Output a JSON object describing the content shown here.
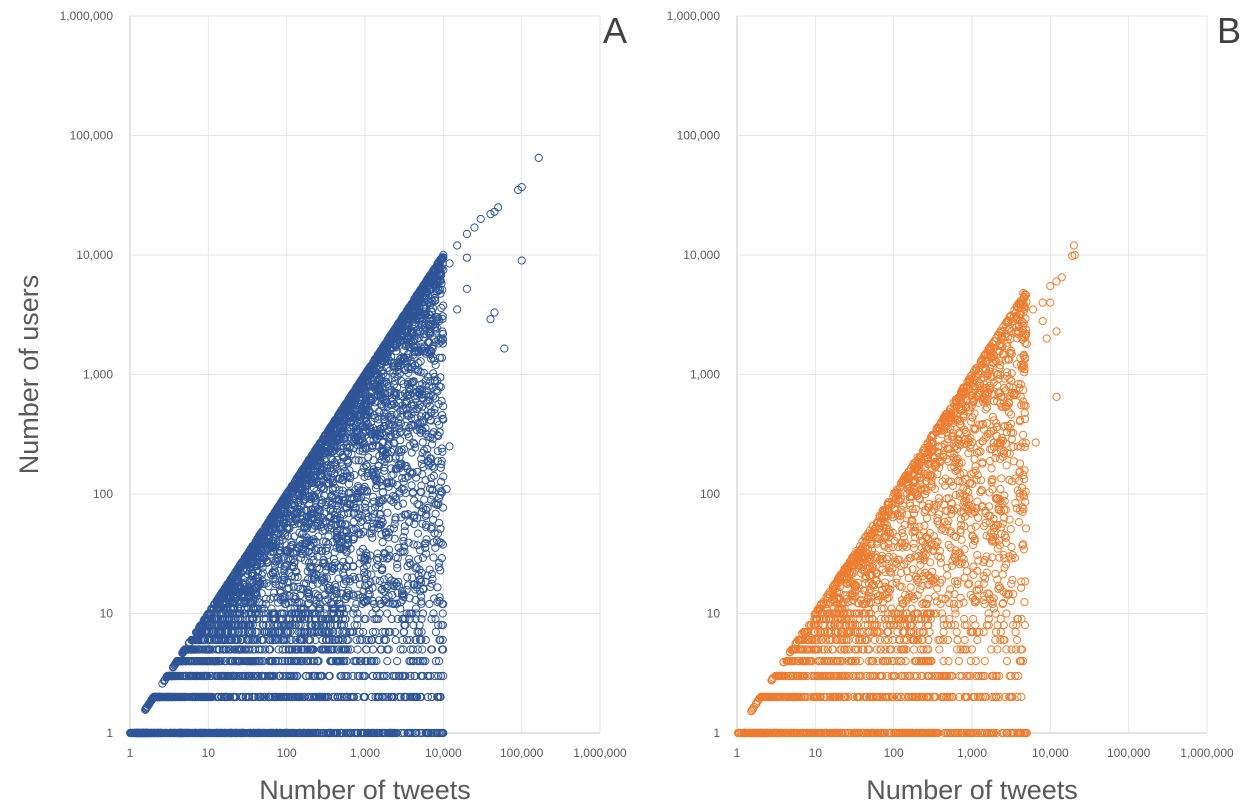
{
  "chart_data": [
    {
      "panel_label": "A",
      "type": "scatter",
      "xlabel": "Number of tweets",
      "ylabel": "Number of users",
      "x_scale": "log",
      "y_scale": "log",
      "xlim": [
        1,
        1000000
      ],
      "ylim": [
        1,
        1000000
      ],
      "x_tick_labels": [
        "1",
        "10",
        "100",
        "1,000",
        "10,000",
        "100,000",
        "1,000,000"
      ],
      "y_tick_labels": [
        "1",
        "10",
        "100",
        "1,000",
        "10,000",
        "100,000",
        "1,000,000"
      ],
      "grid": true,
      "marker": "open-circle",
      "color": "#2f5597",
      "description_of_distribution": {
        "upper_boundary": "users ≈ tweets (points lie on or below the diagonal)",
        "dense_cloud_x_range": [
          1,
          10000
        ],
        "points_with_1_user_up_to_x": 600
      },
      "points": [
        [
          165000,
          65000
        ],
        [
          100000,
          37000
        ],
        [
          90000,
          35000
        ],
        [
          50000,
          25000
        ],
        [
          45000,
          23000
        ],
        [
          40000,
          22000
        ],
        [
          30000,
          20000
        ],
        [
          25000,
          17000
        ],
        [
          20000,
          15000
        ],
        [
          15000,
          12000
        ],
        [
          100000,
          9000
        ],
        [
          60000,
          1650
        ],
        [
          45000,
          3300
        ],
        [
          40000,
          2900
        ],
        [
          20000,
          9500
        ],
        [
          12000,
          8500
        ],
        [
          10000,
          7500
        ],
        [
          8000,
          6000
        ],
        [
          6000,
          5000
        ],
        [
          5000,
          4500
        ],
        [
          4000,
          3800
        ],
        [
          3000,
          3000
        ],
        [
          20000,
          5200
        ],
        [
          15000,
          3500
        ],
        [
          8000,
          1200
        ],
        [
          10000,
          420
        ],
        [
          12000,
          250
        ],
        [
          10000,
          140
        ],
        [
          11000,
          110
        ],
        [
          7500,
          10
        ],
        [
          7000,
          5
        ],
        [
          3000,
          6
        ],
        [
          4000,
          20
        ],
        [
          3000,
          14
        ],
        [
          2000,
          14
        ],
        [
          1000,
          2
        ],
        [
          500,
          4
        ],
        [
          400,
          10
        ],
        [
          6000,
          450
        ],
        [
          5000,
          350
        ],
        [
          3000,
          550
        ],
        [
          2000,
          700
        ],
        [
          1500,
          900
        ],
        [
          1200,
          1000
        ]
      ]
    },
    {
      "panel_label": "B",
      "type": "scatter",
      "xlabel": "Number of tweets",
      "ylabel": "",
      "x_scale": "log",
      "y_scale": "log",
      "xlim": [
        1,
        1000000
      ],
      "ylim": [
        1,
        1000000
      ],
      "x_tick_labels": [
        "1",
        "10",
        "100",
        "1,000",
        "10,000",
        "100,000",
        "1,000,000"
      ],
      "y_tick_labels": [
        "1",
        "10",
        "100",
        "1,000",
        "10,000",
        "100,000",
        "1,000,000"
      ],
      "grid": true,
      "marker": "open-circle",
      "color": "#ed7d31",
      "description_of_distribution": {
        "upper_boundary": "users ≈ tweets (points lie on or below the diagonal)",
        "dense_cloud_x_range": [
          1,
          5000
        ],
        "points_with_1_user_up_to_x": 300
      },
      "points": [
        [
          20000,
          12000
        ],
        [
          20500,
          10000
        ],
        [
          19000,
          9800
        ],
        [
          14000,
          6500
        ],
        [
          12000,
          6000
        ],
        [
          10000,
          5500
        ],
        [
          8000,
          4000
        ],
        [
          6000,
          3500
        ],
        [
          4500,
          4800
        ],
        [
          12000,
          650
        ],
        [
          6500,
          270
        ],
        [
          4500,
          100
        ],
        [
          4500,
          38
        ],
        [
          2000,
          10
        ],
        [
          2200,
          17
        ],
        [
          2000,
          40
        ],
        [
          3000,
          30
        ],
        [
          10000,
          4000
        ],
        [
          8000,
          2800
        ],
        [
          5000,
          1800
        ],
        [
          3000,
          1500
        ],
        [
          2000,
          1300
        ],
        [
          1500,
          1100
        ],
        [
          12000,
          2300
        ],
        [
          9000,
          2000
        ],
        [
          3500,
          700
        ]
      ]
    }
  ]
}
